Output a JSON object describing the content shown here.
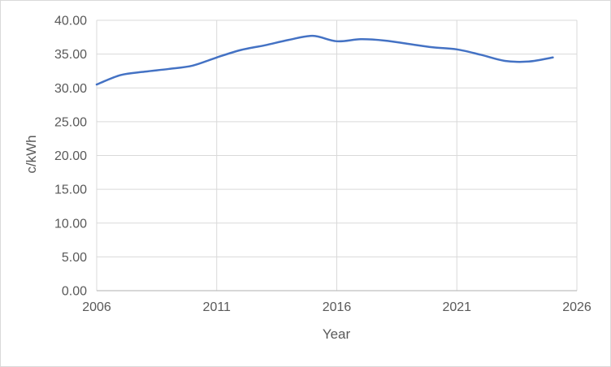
{
  "chart_data": {
    "type": "line",
    "title": "",
    "xlabel": "Year",
    "ylabel": "c/kWh",
    "x": [
      2006,
      2007,
      2008,
      2009,
      2010,
      2011,
      2012,
      2013,
      2014,
      2015,
      2016,
      2017,
      2018,
      2019,
      2020,
      2021,
      2022,
      2023,
      2024,
      2025
    ],
    "series": [
      {
        "name": "c/kWh",
        "color": "#4472C4",
        "smooth": true,
        "values": [
          30.5,
          31.9,
          32.4,
          32.8,
          33.3,
          34.5,
          35.6,
          36.3,
          37.1,
          37.7,
          36.9,
          37.2,
          37.0,
          36.5,
          36.0,
          35.7,
          34.9,
          34.0,
          33.9,
          34.5
        ]
      }
    ],
    "xlim": [
      2006,
      2026
    ],
    "ylim": [
      0,
      40
    ],
    "x_ticks": [
      "2006",
      "2011",
      "2016",
      "2021",
      "2026"
    ],
    "x_tick_values": [
      2006,
      2011,
      2016,
      2021,
      2026
    ],
    "y_ticks": [
      "0.00",
      "5.00",
      "10.00",
      "15.00",
      "20.00",
      "25.00",
      "30.00",
      "35.00",
      "40.00"
    ],
    "y_tick_values": [
      0,
      5,
      10,
      15,
      20,
      25,
      30,
      35,
      40
    ],
    "grid": true,
    "legend": "none"
  },
  "colors": {
    "line": "#4472C4",
    "gridline": "#D9D9D9",
    "axis_line": "#BFBFBF",
    "text": "#595959",
    "border": "#D9D9D9",
    "background": "#FFFFFF"
  }
}
